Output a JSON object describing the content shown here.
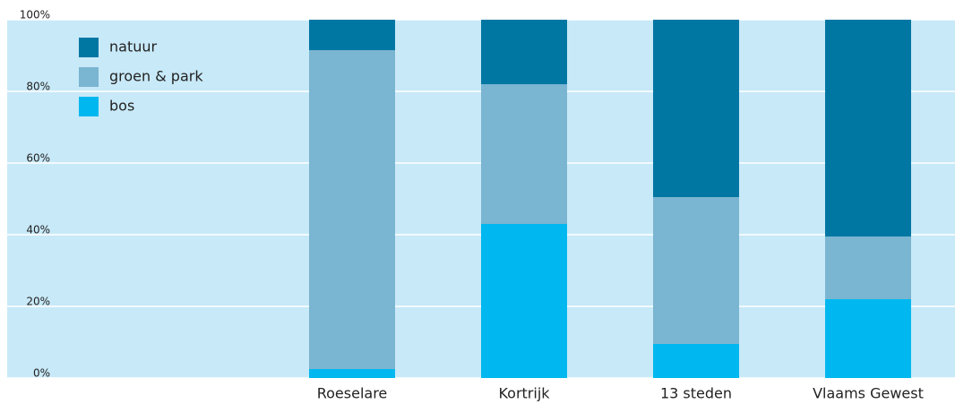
{
  "chart_data": {
    "type": "bar",
    "stacked": true,
    "categories": [
      "Roeselare",
      "Kortrijk",
      "13 steden",
      "Vlaams Gewest"
    ],
    "series": [
      {
        "name": "natuur",
        "color": "#0077a3",
        "values": [
          8.5,
          18,
          49.5,
          60.5
        ]
      },
      {
        "name": "groen & park",
        "color": "#7ab5d1",
        "values": [
          89,
          39,
          41,
          17.5
        ]
      },
      {
        "name": "bos",
        "color": "#00b8ef",
        "values": [
          2.5,
          43,
          9.5,
          22
        ]
      }
    ],
    "ylim": [
      0,
      100
    ],
    "yticks": [
      {
        "value": 0,
        "label": "0%"
      },
      {
        "value": 20,
        "label": "20%"
      },
      {
        "value": 40,
        "label": "40%"
      },
      {
        "value": 60,
        "label": "60%"
      },
      {
        "value": 80,
        "label": "80%"
      },
      {
        "value": 100,
        "label": "100%"
      }
    ],
    "grid": true,
    "background": "#c8e9f8",
    "legend": "top-left"
  }
}
